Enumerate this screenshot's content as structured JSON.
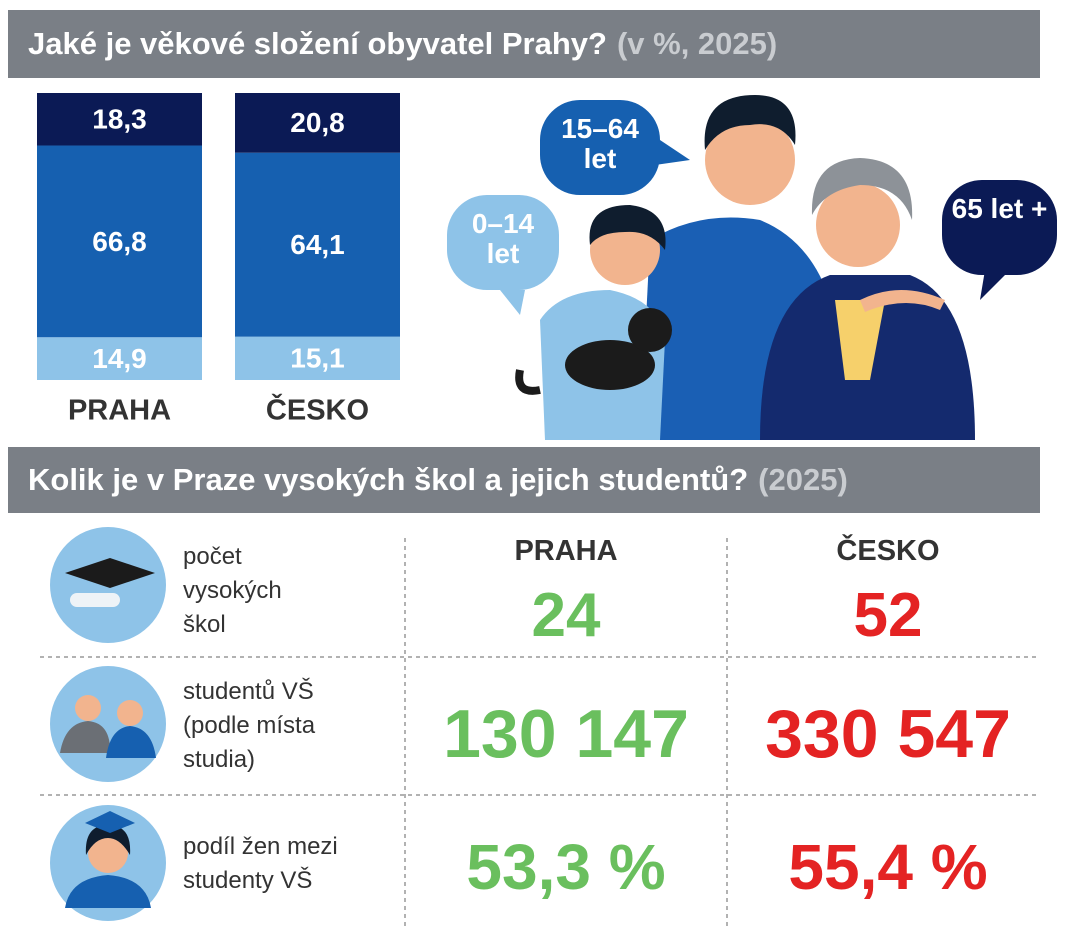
{
  "chart_data": {
    "type": "stacked-bar",
    "title": "Jaké je věkové složení obyvatel Prahy?",
    "subtitle": "(v %, 2025)",
    "categories": [
      "PRAHA",
      "ČESKO"
    ],
    "series": [
      {
        "name": "0–14 let",
        "color": "#8ec3e8",
        "values": [
          14.9,
          15.1
        ],
        "value_labels": [
          "14,9",
          "15,1"
        ]
      },
      {
        "name": "15–64 let",
        "color": "#1660b0",
        "values": [
          66.8,
          64.1
        ],
        "value_labels": [
          "66,8",
          "64,1"
        ]
      },
      {
        "name": "65 let +",
        "color": "#0b1a55",
        "values": [
          18.3,
          20.8
        ],
        "value_labels": [
          "18,3",
          "20,8"
        ]
      }
    ]
  },
  "schools": {
    "title": "Kolik je v Praze vysokých škol a jejich studentů?",
    "note": "(2025)",
    "columns": [
      "PRAHA",
      "ČESKO"
    ],
    "rows": [
      {
        "label": [
          "počet",
          "vysokých",
          "škol"
        ],
        "values": [
          "24",
          "52"
        ]
      },
      {
        "label": [
          "studentů VŠ",
          "(podle místa",
          "studia)"
        ],
        "values": [
          "130 147",
          "330 547"
        ]
      },
      {
        "label": [
          "podíl žen mezi",
          "studenty VŠ"
        ],
        "values": [
          "53,3 %",
          "55,4 %"
        ]
      }
    ]
  }
}
